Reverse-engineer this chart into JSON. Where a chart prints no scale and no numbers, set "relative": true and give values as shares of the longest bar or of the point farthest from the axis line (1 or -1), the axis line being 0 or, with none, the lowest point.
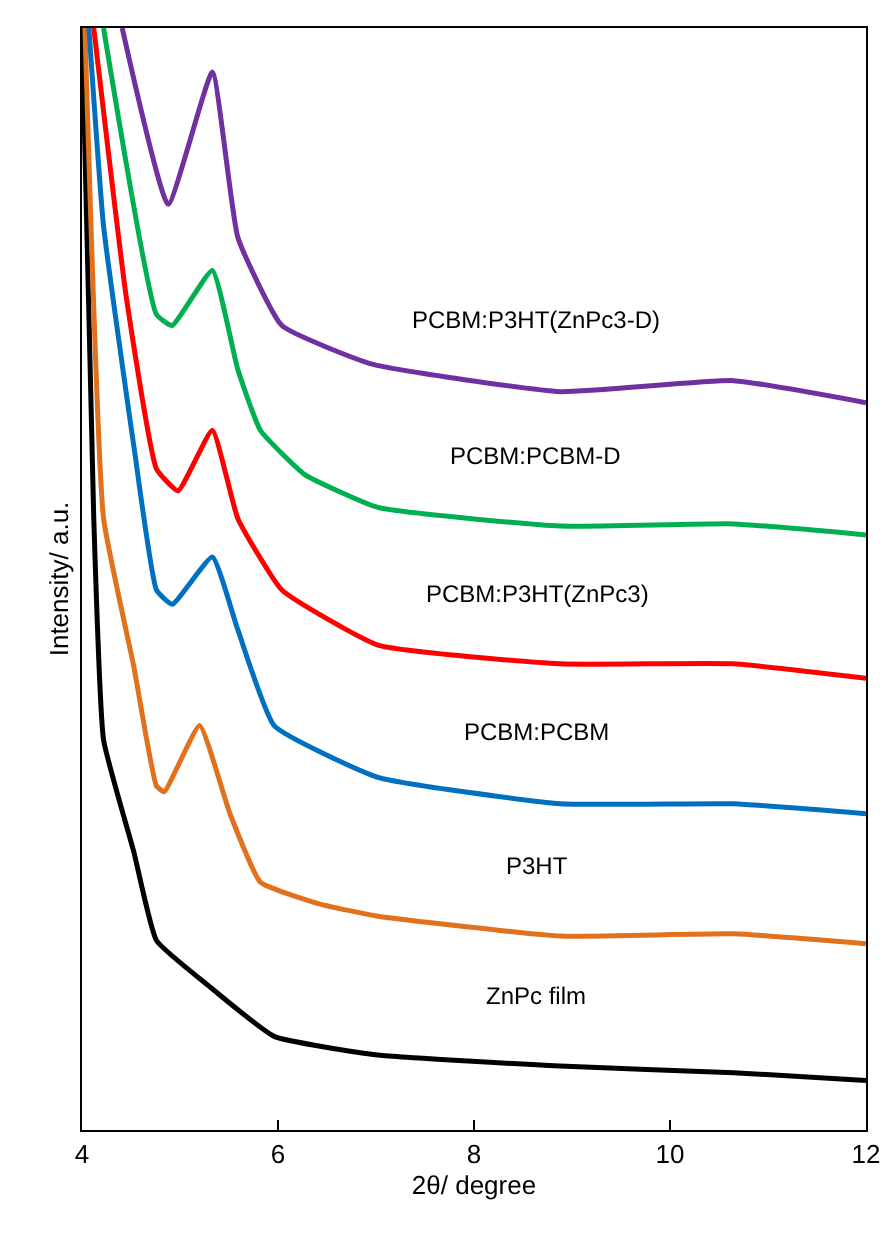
{
  "chart_data": {
    "type": "line",
    "xlabel": "2θ/ degree",
    "ylabel": "Intensity/ a.u.",
    "relative": true,
    "tick_labels": "x",
    "xlim": [
      4,
      12
    ],
    "xticks": [
      4,
      6,
      8,
      10,
      12
    ],
    "grid": false,
    "legend": false,
    "marker": "none",
    "line_style": "solid",
    "series": [
      {
        "name": "ZnPc film",
        "color": "#000000",
        "x": [
          4.0,
          4.12,
          4.22,
          4.53,
          4.76,
          5.29,
          5.96,
          7.02,
          8.88,
          10.65,
          12.0
        ],
        "values": [
          1,
          0.555,
          0.354,
          0.252,
          0.172,
          0.131,
          0.085,
          0.068,
          0.058,
          0.052,
          0.045
        ]
      },
      {
        "name": "P3HT",
        "color": "#e2711d",
        "x": [
          4.03,
          4.22,
          4.53,
          4.76,
          4.84,
          5.2,
          5.51,
          5.82,
          6.43,
          7.02,
          8.88,
          10.65,
          12.0
        ],
        "values": [
          1,
          0.555,
          0.42,
          0.312,
          0.307,
          0.367,
          0.287,
          0.225,
          0.205,
          0.194,
          0.176,
          0.178,
          0.169
        ]
      },
      {
        "name": "PCBM:PCBM",
        "color": "#0070c0",
        "x": [
          4.07,
          4.22,
          4.53,
          4.76,
          4.92,
          5.33,
          5.59,
          5.96,
          7.02,
          8.88,
          10.65,
          12.0
        ],
        "values": [
          1,
          0.82,
          0.62,
          0.49,
          0.477,
          0.52,
          0.454,
          0.367,
          0.32,
          0.296,
          0.296,
          0.287
        ]
      },
      {
        "name": "PCBM:P3HT(ZnPc3)",
        "color": "#ff0000",
        "x": [
          4.12,
          4.45,
          4.76,
          4.98,
          5.33,
          5.59,
          6.04,
          7.02,
          8.88,
          10.65,
          12.0
        ],
        "values": [
          1,
          0.757,
          0.6,
          0.58,
          0.635,
          0.555,
          0.49,
          0.44,
          0.423,
          0.423,
          0.41
        ]
      },
      {
        "name": "PCBM:PCBM-D",
        "color": "#00b050",
        "x": [
          4.22,
          4.76,
          4.92,
          5.33,
          5.59,
          5.82,
          6.27,
          7.02,
          8.88,
          10.65,
          12.0
        ],
        "values": [
          1,
          0.74,
          0.73,
          0.78,
          0.69,
          0.635,
          0.595,
          0.565,
          0.548,
          0.55,
          0.54
        ]
      },
      {
        "name": "PCBM:P3HT(ZnPc3-D)",
        "color": "#7030a0",
        "x": [
          4.41,
          4.88,
          5.33,
          5.59,
          6.04,
          6.96,
          8.88,
          10.65,
          12.0
        ],
        "values": [
          1,
          0.84,
          0.96,
          0.81,
          0.73,
          0.695,
          0.67,
          0.68,
          0.66
        ]
      }
    ]
  }
}
